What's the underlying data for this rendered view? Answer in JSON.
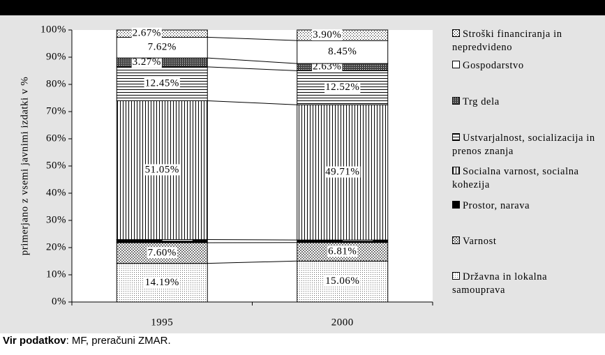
{
  "chart_data": {
    "type": "stacked_bar_100",
    "ylabel": "primerjano z vsemi javnimi izdatki v %",
    "categories": [
      "1995",
      "2000"
    ],
    "ylim": [
      0,
      100
    ],
    "yticks": [
      {
        "value": 0,
        "label": "0%"
      },
      {
        "value": 10,
        "label": "10%"
      },
      {
        "value": 20,
        "label": "20%"
      },
      {
        "value": 30,
        "label": "30%"
      },
      {
        "value": 40,
        "label": "40%"
      },
      {
        "value": 50,
        "label": "50%"
      },
      {
        "value": 60,
        "label": "60%"
      },
      {
        "value": 70,
        "label": "70%"
      },
      {
        "value": 80,
        "label": "80%"
      },
      {
        "value": 90,
        "label": "90%"
      },
      {
        "value": 100,
        "label": "100%"
      }
    ],
    "series": [
      {
        "name": "Državna in lokalna samouprava",
        "pattern": "fine-dots",
        "values": [
          14.19,
          15.06
        ],
        "value_labels": [
          "14.19%",
          "15.06%"
        ]
      },
      {
        "name": "Varnost",
        "pattern": "checker",
        "values": [
          7.6,
          6.81
        ],
        "value_labels": [
          "7.60%",
          "6.81%"
        ]
      },
      {
        "name": "Prostor, narava",
        "pattern": "solid-black",
        "values": [
          1.15,
          0.93
        ],
        "value_labels": [
          "1.15%",
          "0.93%"
        ]
      },
      {
        "name": "Socialna varnost, socialna kohezija",
        "pattern": "vertical-lines",
        "values": [
          51.05,
          49.71
        ],
        "value_labels": [
          "51.05%",
          "49.71%"
        ]
      },
      {
        "name": "Ustvarjalnost, socializacija in prenos znanja",
        "pattern": "horizontal-lines",
        "values": [
          12.45,
          12.52
        ],
        "value_labels": [
          "12.45%",
          "12.52%"
        ]
      },
      {
        "name": "Trg dela",
        "pattern": "dark-cross",
        "values": [
          3.27,
          2.63
        ],
        "value_labels": [
          "3.27%",
          "2.63%"
        ]
      },
      {
        "name": "Gospodarstvo",
        "pattern": "white",
        "values": [
          7.62,
          8.45
        ],
        "value_labels": [
          "7.62%",
          "8.45%"
        ]
      },
      {
        "name": "Stroški financiranja in nepredvideno",
        "pattern": "sparse-dots",
        "values": [
          2.67,
          3.9
        ],
        "value_labels": [
          "2.67%",
          "3.90%"
        ]
      }
    ]
  },
  "source": {
    "label": "Vir podatkov",
    "text": ": MF, preračuni ZMAR."
  }
}
